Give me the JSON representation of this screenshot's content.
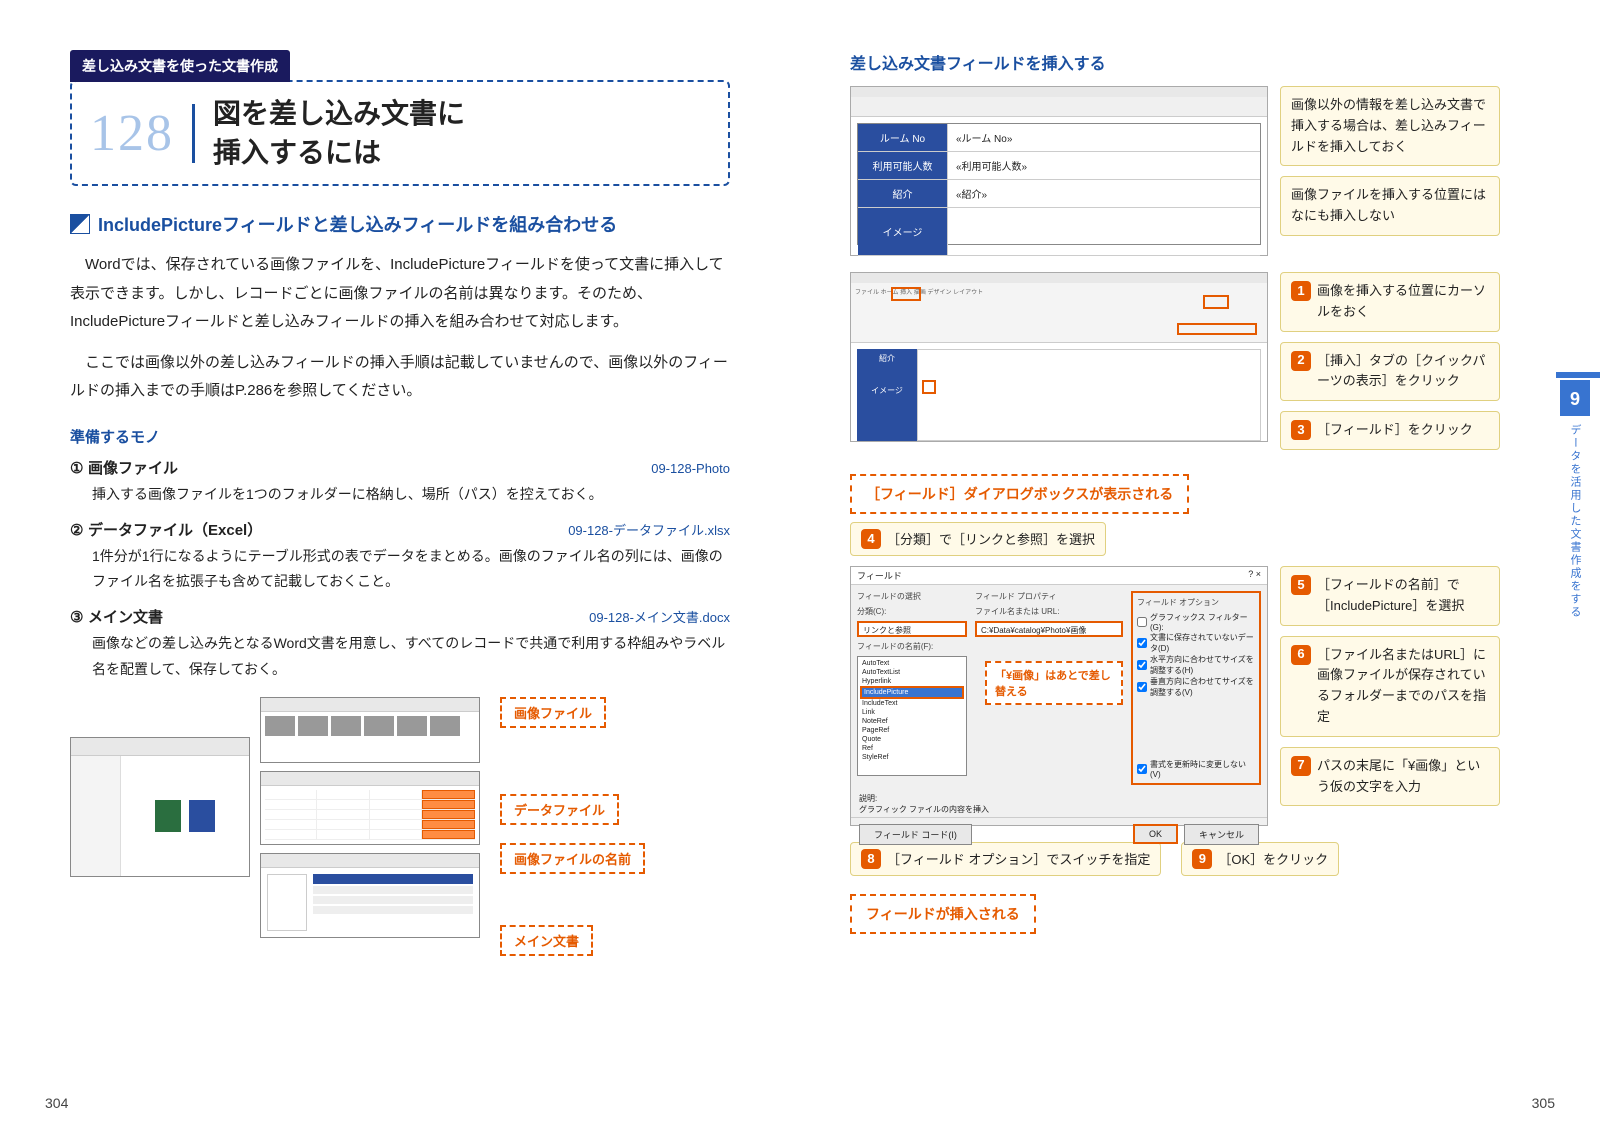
{
  "left": {
    "chapter_label": "差し込み文書を使った文書作成",
    "title_num": "128",
    "title": "図を差し込み文書に\n挿入するには",
    "sub_heading": "IncludePictureフィールドと差し込みフィールドを組み合わせる",
    "body1": "Wordでは、保存されている画像ファイルを、IncludePictureフィールドを使って文書に挿入して表示できます。しかし、レコードごとに画像ファイルの名前は異なります。そのため、IncludePictureフィールドと差し込みフィールドの挿入を組み合わせて対応します。",
    "body2": "ここでは画像以外の差し込みフィールドの挿入手順は記載していませんので、画像以外のフィールドの挿入までの手順はP.286を参照してください。",
    "prep_heading": "準備するモノ",
    "prep": [
      {
        "num": "①",
        "title": "画像ファイル",
        "file": "09-128-Photo",
        "desc": "挿入する画像ファイルを1つのフォルダーに格納し、場所（パス）を控えておく。"
      },
      {
        "num": "②",
        "title": "データファイル（Excel）",
        "file": "09-128-データファイル.xlsx",
        "desc": "1件分が1行になるようにテーブル形式の表でデータをまとめる。画像のファイル名の列には、画像のファイル名を拡張子も含めて記載しておくこと。"
      },
      {
        "num": "③",
        "title": "メイン文書",
        "file": "09-128-メイン文書.docx",
        "desc": "画像などの差し込み先となるWord文書を用意し、すべてのレコードで共通で利用する枠組みやラベル名を配置して、保存しておく。"
      }
    ],
    "diagram_labels": {
      "img": "画像ファイル",
      "data": "データファイル",
      "name": "画像ファイルの名前",
      "main": "メイン文書"
    },
    "page_num": "304"
  },
  "right": {
    "heading": "差し込み文書フィールドを挿入する",
    "doc_rows": [
      {
        "label": "ルーム No",
        "value": "«ルーム No»"
      },
      {
        "label": "利用可能人数",
        "value": "«利用可能人数»"
      },
      {
        "label": "紹介",
        "value": "«紹介»"
      },
      {
        "label": "イメージ",
        "value": ""
      }
    ],
    "callout_info1": "画像以外の情報を差し込み文書で挿入する場合は、差し込みフィールドを挿入しておく",
    "callout_info2": "画像ファイルを挿入する位置にはなにも挿入しない",
    "steps_a": [
      {
        "n": "1",
        "text": "画像を挿入する位置にカーソルをおく"
      },
      {
        "n": "2",
        "text": "［挿入］タブの［クイックパーツの表示］をクリック"
      },
      {
        "n": "3",
        "text": "［フィールド］をクリック"
      }
    ],
    "mid_callout": "［フィールド］ダイアログボックスが表示される",
    "step4": {
      "n": "4",
      "text": "［分類］で［リンクと参照］を選択"
    },
    "dialog": {
      "title": "フィールド",
      "cat_label": "フィールドの選択",
      "cat_sub": "分類(C):",
      "cat_value": "リンクと参照",
      "list_label": "フィールドの名前(F):",
      "list_items": [
        "AutoText",
        "AutoTextList",
        "Hyperlink",
        "IncludePicture",
        "IncludeText",
        "Link",
        "NoteRef",
        "PageRef",
        "Quote",
        "Ref",
        "StyleRef"
      ],
      "list_selected": "IncludePicture",
      "prop_label": "フィールド プロパティ",
      "prop_sub": "ファイル名または URL:",
      "prop_value": "C:¥Data¥catalog¥Photo¥画像",
      "opt_label": "フィールド オプション",
      "opts": [
        "グラフィックス フィルター(G):",
        "文書に保存されていないデータ(D)",
        "水平方向に合わせてサイズを調整する(H)",
        "垂直方向に合わせてサイズを調整する(V)"
      ],
      "preserve": "書式を更新時に変更しない(V)",
      "desc_label": "説明:",
      "desc": "グラフィック ファイルの内容を挿入",
      "code_btn": "フィールド コード(I)",
      "ok": "OK",
      "cancel": "キャンセル"
    },
    "inline_note": "「¥画像」はあとで差し替える",
    "steps_b": [
      {
        "n": "5",
        "text": "［フィールドの名前］で［IncludePicture］を選択"
      },
      {
        "n": "6",
        "text": "［ファイル名またはURL］に画像ファイルが保存されているフォルダーまでのパスを指定"
      },
      {
        "n": "7",
        "text": "パスの末尾に「¥画像」という仮の文字を入力"
      }
    ],
    "step8": {
      "n": "8",
      "text": "［フィールド オプション］でスイッチを指定"
    },
    "step9": {
      "n": "9",
      "text": "［OK］をクリック"
    },
    "end_callout": "フィールドが挿入される",
    "side": {
      "num": "9",
      "text": "データを活用した文書作成をする"
    },
    "page_num": "305"
  }
}
